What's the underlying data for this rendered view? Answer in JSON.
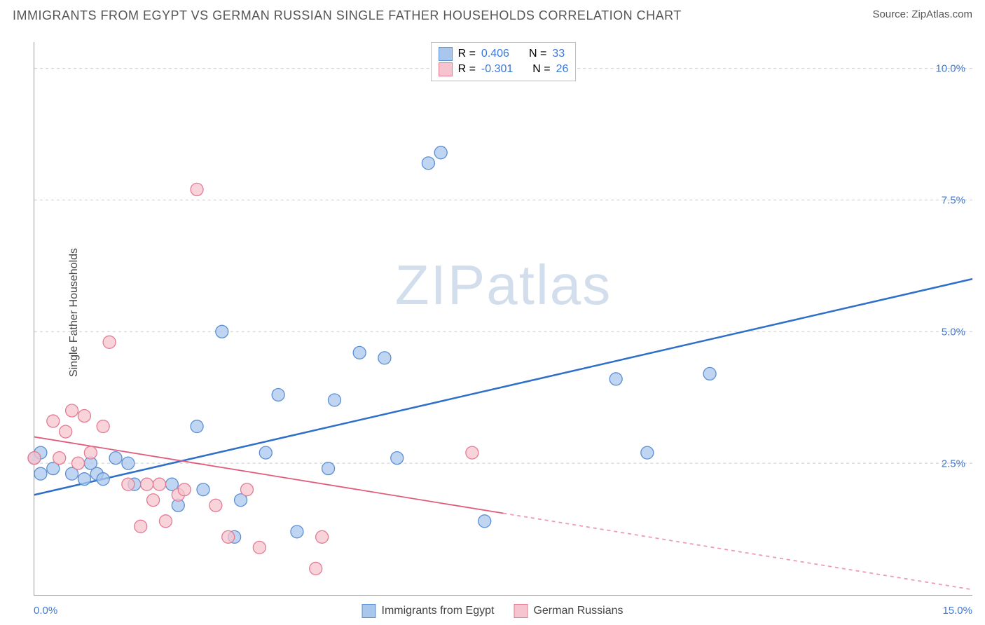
{
  "title": "IMMIGRANTS FROM EGYPT VS GERMAN RUSSIAN SINGLE FATHER HOUSEHOLDS CORRELATION CHART",
  "source": "Source: ZipAtlas.com",
  "ylabel": "Single Father Households",
  "watermark_left": "ZIP",
  "watermark_right": "atlas",
  "chart": {
    "type": "scatter+regression",
    "xlim": [
      0,
      15
    ],
    "ylim": [
      0,
      10.5
    ],
    "y_ticks": [
      2.5,
      5.0,
      7.5,
      10.0
    ],
    "y_tick_labels": [
      "2.5%",
      "5.0%",
      "7.5%",
      "10.0%"
    ],
    "x_ticks": [
      0,
      15
    ],
    "x_tick_labels": [
      "0.0%",
      "15.0%"
    ],
    "grid_color": "#cccccc",
    "axis_color": "#999999",
    "background": "#ffffff",
    "marker_radius": 9,
    "marker_stroke_width": 1.3,
    "line_width": 2.5
  },
  "series": [
    {
      "key": "egypt",
      "label": "Immigrants from Egypt",
      "stats": {
        "R": "0.406",
        "N": "33"
      },
      "fill": "#a9c7ec",
      "stroke": "#5b8fd4",
      "line_color": "#2e6fc9",
      "regression": {
        "x1": 0,
        "y1": 1.9,
        "x2": 15,
        "y2": 6.0,
        "dash_from_x": null
      },
      "points": [
        [
          0.0,
          2.6
        ],
        [
          0.1,
          2.3
        ],
        [
          0.1,
          2.7
        ],
        [
          0.3,
          2.4
        ],
        [
          0.6,
          2.3
        ],
        [
          0.8,
          2.2
        ],
        [
          0.9,
          2.5
        ],
        [
          1.0,
          2.3
        ],
        [
          1.1,
          2.2
        ],
        [
          1.3,
          2.6
        ],
        [
          1.5,
          2.5
        ],
        [
          1.6,
          2.1
        ],
        [
          2.2,
          2.1
        ],
        [
          2.3,
          1.7
        ],
        [
          2.6,
          3.2
        ],
        [
          2.7,
          2.0
        ],
        [
          3.0,
          5.0
        ],
        [
          3.2,
          1.1
        ],
        [
          3.3,
          1.8
        ],
        [
          3.7,
          2.7
        ],
        [
          3.9,
          3.8
        ],
        [
          4.2,
          1.2
        ],
        [
          4.7,
          2.4
        ],
        [
          4.8,
          3.7
        ],
        [
          5.2,
          4.6
        ],
        [
          5.6,
          4.5
        ],
        [
          5.8,
          2.6
        ],
        [
          6.3,
          8.2
        ],
        [
          6.5,
          8.4
        ],
        [
          7.2,
          1.4
        ],
        [
          9.3,
          4.1
        ],
        [
          9.8,
          2.7
        ],
        [
          10.8,
          4.2
        ]
      ]
    },
    {
      "key": "german_russian",
      "label": "German Russians",
      "stats": {
        "R": "-0.301",
        "N": "26"
      },
      "fill": "#f6c4ce",
      "stroke": "#e47a94",
      "line_color": "#e25b7c",
      "regression": {
        "x1": 0,
        "y1": 3.0,
        "x2": 15,
        "y2": 0.1,
        "dash_from_x": 7.5
      },
      "points": [
        [
          0.0,
          2.6
        ],
        [
          0.3,
          3.3
        ],
        [
          0.4,
          2.6
        ],
        [
          0.5,
          3.1
        ],
        [
          0.6,
          3.5
        ],
        [
          0.7,
          2.5
        ],
        [
          0.8,
          3.4
        ],
        [
          0.9,
          2.7
        ],
        [
          1.1,
          3.2
        ],
        [
          1.2,
          4.8
        ],
        [
          1.5,
          2.1
        ],
        [
          1.7,
          1.3
        ],
        [
          1.8,
          2.1
        ],
        [
          1.9,
          1.8
        ],
        [
          2.0,
          2.1
        ],
        [
          2.1,
          1.4
        ],
        [
          2.3,
          1.9
        ],
        [
          2.4,
          2.0
        ],
        [
          2.6,
          7.7
        ],
        [
          2.9,
          1.7
        ],
        [
          3.1,
          1.1
        ],
        [
          3.4,
          2.0
        ],
        [
          3.6,
          0.9
        ],
        [
          4.5,
          0.5
        ],
        [
          4.6,
          1.1
        ],
        [
          7.0,
          2.7
        ]
      ]
    }
  ],
  "legend_top_prefix_R": "R  =  ",
  "legend_top_prefix_N": "N  =  "
}
